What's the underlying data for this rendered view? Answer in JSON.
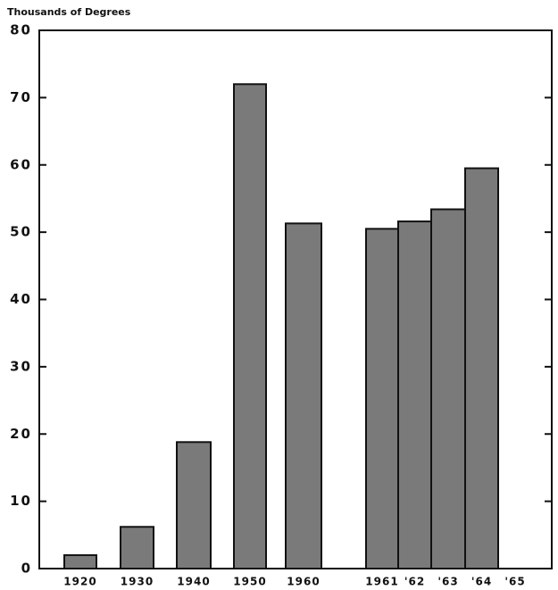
{
  "chart_data": {
    "type": "bar",
    "y_label": "Thousands of Degrees",
    "categories": [
      "1920",
      "1930",
      "1940",
      "1950",
      "1960",
      "1961",
      "'62",
      "'63",
      "'64",
      "'65"
    ],
    "values": [
      2.0,
      6.2,
      18.8,
      72.0,
      51.3,
      50.5,
      51.6,
      53.4,
      59.5,
      null
    ],
    "color": "#7a7a7a",
    "ylim": [
      0,
      80
    ],
    "yticks": [
      0,
      10,
      20,
      30,
      40,
      50,
      60,
      70,
      80
    ],
    "grid": false
  }
}
